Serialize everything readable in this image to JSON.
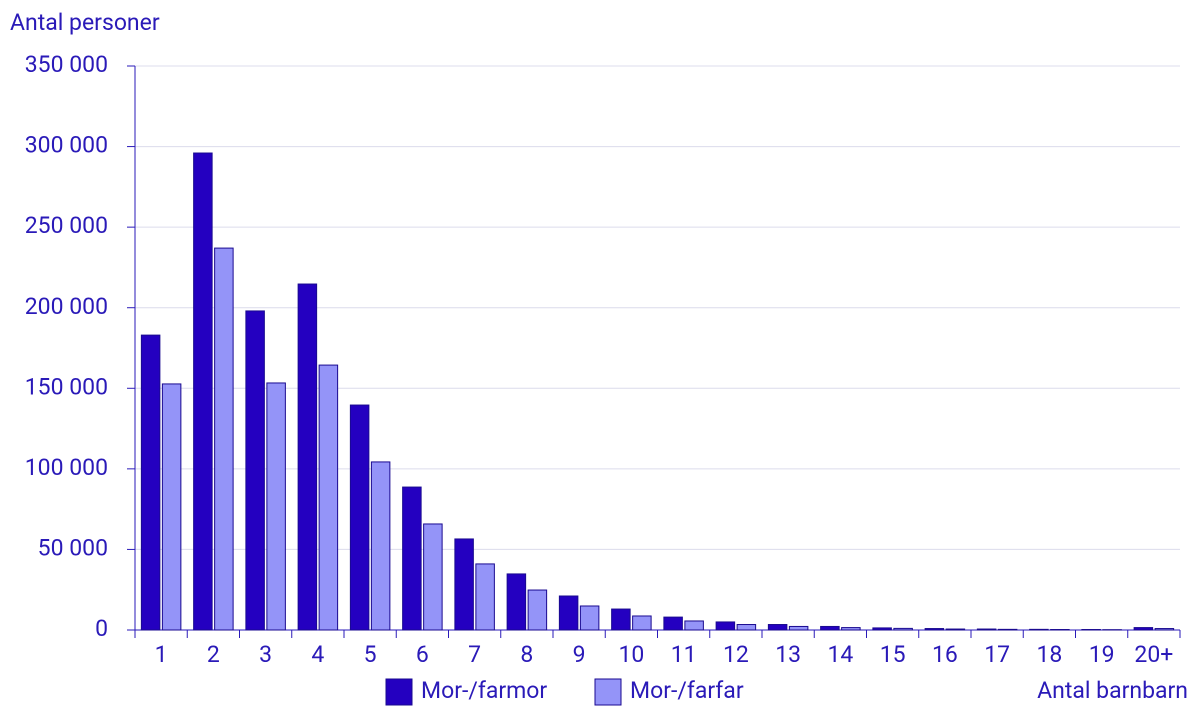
{
  "chart_data": {
    "type": "bar",
    "y_label": "Antal personer",
    "x_label": "Antal barnbarn",
    "categories": [
      "1",
      "2",
      "3",
      "4",
      "5",
      "6",
      "7",
      "8",
      "9",
      "10",
      "11",
      "12",
      "13",
      "14",
      "15",
      "16",
      "17",
      "18",
      "19",
      "20+"
    ],
    "series": [
      {
        "name": "Mor-/farmor",
        "color": "#2400c0",
        "values": [
          183000,
          296000,
          198000,
          214700,
          139600,
          88700,
          56500,
          34800,
          21100,
          13000,
          8000,
          5000,
          3400,
          2200,
          1300,
          900,
          600,
          400,
          300,
          1500
        ]
      },
      {
        "name": "Mor-/farfar",
        "color": "#9494f8",
        "values": [
          152700,
          237000,
          153300,
          164400,
          104300,
          65800,
          41000,
          24800,
          14900,
          8700,
          5600,
          3400,
          2200,
          1500,
          1000,
          600,
          400,
          300,
          200,
          900
        ]
      }
    ],
    "ylim": [
      0,
      350000
    ],
    "yticks": [
      0,
      {
        "value": 50000,
        "label": "50 000"
      },
      {
        "value": 100000,
        "label": "100 000"
      },
      {
        "value": 150000,
        "label": "150 000"
      },
      {
        "value": 200000,
        "label": "200 000"
      },
      {
        "value": 250000,
        "label": "250 000"
      },
      {
        "value": 300000,
        "label": "300 000"
      },
      {
        "value": 350000,
        "label": "350 000"
      }
    ],
    "grid": true
  }
}
